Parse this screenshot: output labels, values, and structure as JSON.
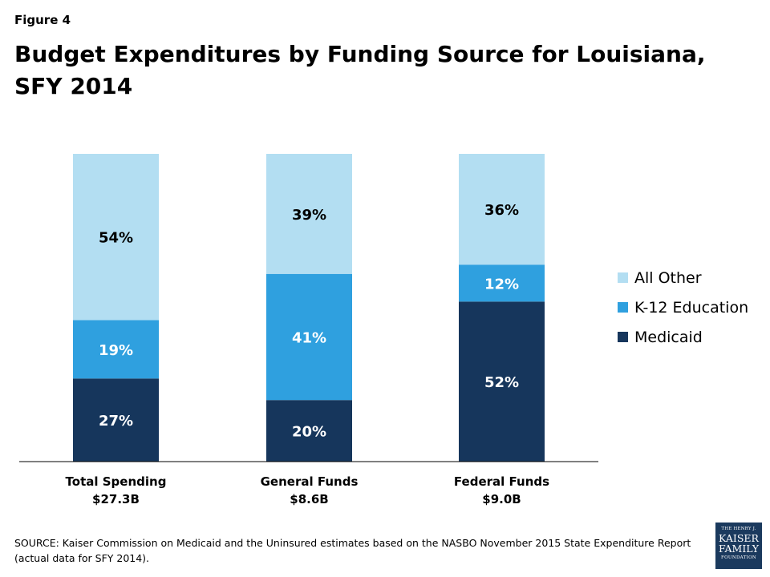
{
  "figure_label": "Figure 4",
  "title": "Budget Expenditures by Funding Source for Louisiana, SFY 2014",
  "chart_data": {
    "type": "bar",
    "stacked": true,
    "percent_stacked": true,
    "categories": [
      "Total Spending",
      "General Funds",
      "Federal Funds"
    ],
    "category_sublabels": [
      "$27.3B",
      "$8.6B",
      "$9.0B"
    ],
    "series": [
      {
        "name": "Medicaid",
        "values": [
          27,
          20,
          52
        ],
        "color": "#16365c"
      },
      {
        "name": "K-12 Education",
        "values": [
          19,
          41,
          12
        ],
        "color": "#2fa0df"
      },
      {
        "name": "All Other",
        "values": [
          54,
          39,
          36
        ],
        "color": "#b3def2"
      }
    ],
    "legend_order": [
      "All Other",
      "K-12 Education",
      "Medicaid"
    ],
    "data_label_suffix": "%",
    "ylim": [
      0,
      100
    ],
    "legend_position": "right",
    "grid": false
  },
  "source": "SOURCE: Kaiser Commission on Medicaid and the Uninsured estimates based on the NASBO November 2015 State Expenditure Report (actual data for SFY 2014).",
  "logo": {
    "line1": "THE HENRY J.",
    "line2": "KAISER",
    "line3": "FAMILY",
    "line4": "FOUNDATION"
  }
}
